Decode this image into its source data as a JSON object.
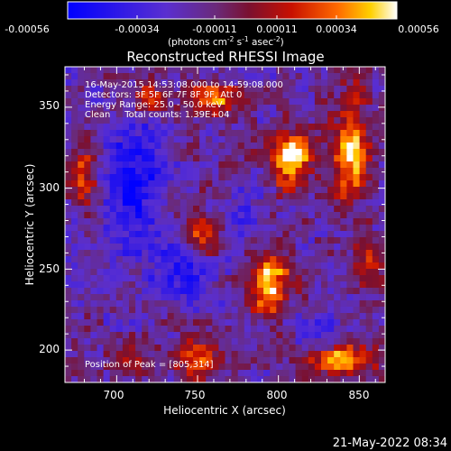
{
  "colorbar": {
    "tick_labels": [
      "-0.00056",
      "-0.00034",
      "-0.00011",
      "0.00011",
      "0.00034",
      "0.00056"
    ],
    "tick_values": [
      -0.00056,
      -0.00034,
      -0.00011,
      0.00011,
      0.00034,
      0.00056
    ],
    "units_prefix": "(photons cm",
    "units_exp1": "-2",
    "units_mid1": " s",
    "units_exp2": "-1",
    "units_mid2": " asec",
    "units_exp3": "-2",
    "units_suffix": ")"
  },
  "plot": {
    "title": "Reconstructed RHESSI Image",
    "annotations": [
      "16-May-2015 14:53:08.000 to 14:59:08.000",
      "Detectors: 3F 5F 6F 7F 8F 9F, Att 0",
      "Energy Range: 25.0 - 50.0 keV",
      "Clean     Total counts: 1.39E+04"
    ],
    "peak_label": "Position of Peak = [805,314]",
    "xlabel": "Heliocentric X (arcsec)",
    "ylabel": "Heliocentric Y (arcsec)",
    "x_ticks": [
      "700",
      "750",
      "800",
      "850"
    ],
    "y_ticks": [
      "200",
      "250",
      "300",
      "350"
    ]
  },
  "footer": {
    "timestamp": "21-May-2022 08:34"
  },
  "image": {
    "xlim": [
      668,
      866
    ],
    "ylim": [
      180,
      375
    ],
    "peak": [
      805,
      314
    ],
    "bright_sources": [
      {
        "x": 808,
        "y": 318,
        "sx": 9,
        "sy": 11,
        "a": 1.0
      },
      {
        "x": 795,
        "y": 240,
        "sx": 8,
        "sy": 14,
        "a": 0.95
      },
      {
        "x": 845,
        "y": 325,
        "sx": 7,
        "sy": 22,
        "a": 0.85
      },
      {
        "x": 752,
        "y": 270,
        "sx": 8,
        "sy": 10,
        "a": 0.7
      },
      {
        "x": 760,
        "y": 355,
        "sx": 10,
        "sy": 6,
        "a": 0.7
      },
      {
        "x": 720,
        "y": 355,
        "sx": 6,
        "sy": 6,
        "a": 0.6
      },
      {
        "x": 680,
        "y": 310,
        "sx": 6,
        "sy": 14,
        "a": 0.55
      },
      {
        "x": 750,
        "y": 195,
        "sx": 9,
        "sy": 8,
        "a": 0.6
      },
      {
        "x": 840,
        "y": 195,
        "sx": 14,
        "sy": 7,
        "a": 0.85
      },
      {
        "x": 712,
        "y": 192,
        "sx": 8,
        "sy": 5,
        "a": 0.5
      },
      {
        "x": 855,
        "y": 255,
        "sx": 6,
        "sy": 10,
        "a": 0.5
      }
    ],
    "dark_regions": [
      {
        "x": 710,
        "y": 300,
        "sx": 14,
        "sy": 30,
        "a": 0.95
      },
      {
        "x": 740,
        "y": 250,
        "sx": 14,
        "sy": 16,
        "a": 0.7
      },
      {
        "x": 775,
        "y": 285,
        "sx": 10,
        "sy": 12,
        "a": 0.55
      },
      {
        "x": 830,
        "y": 210,
        "sx": 12,
        "sy": 10,
        "a": 0.45
      }
    ]
  }
}
